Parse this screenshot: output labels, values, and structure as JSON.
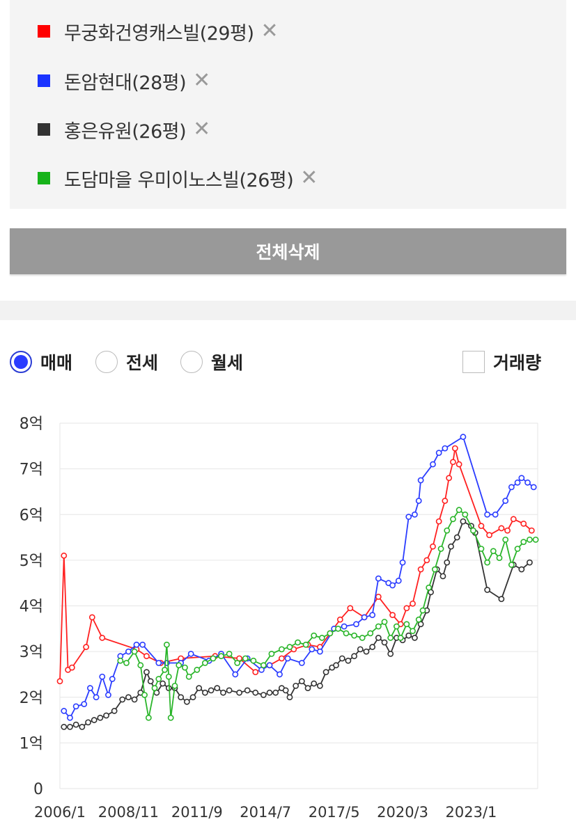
{
  "compare_list": {
    "items": [
      {
        "label": "무궁화건영캐스빌(29평)",
        "color": "#ff0000",
        "remove": "✕"
      },
      {
        "label": "돈암현대(28평)",
        "color": "#1a33ff",
        "remove": "✕"
      },
      {
        "label": "홍은유원(26평)",
        "color": "#333333",
        "remove": "✕"
      },
      {
        "label": "도담마을 우미이노스빌(26평)",
        "color": "#17b31a",
        "remove": "✕"
      }
    ],
    "delete_all_label": "전체삭제"
  },
  "chart_controls": {
    "options": [
      {
        "label": "매매",
        "checked": true
      },
      {
        "label": "전세",
        "checked": false
      },
      {
        "label": "월세",
        "checked": false
      }
    ],
    "volume_label": "거래량",
    "volume_checked": false
  },
  "chart_data": {
    "type": "line",
    "x_type": "date",
    "xlim": [
      "2006-01",
      "2025-10"
    ],
    "x_ticks": [
      "2006/1",
      "2008/11",
      "2011/9",
      "2014/7",
      "2017/5",
      "2020/3",
      "2023/1"
    ],
    "ylim": [
      0,
      8
    ],
    "y_ticks": [
      "0",
      "1억",
      "2억",
      "3억",
      "4억",
      "5억",
      "6억",
      "7억",
      "8억"
    ],
    "grid": true,
    "markers": "circle",
    "series": [
      {
        "name": "무궁화건영캐스빌(29평)",
        "color": "#ff2020",
        "points": [
          [
            "2006-01",
            2.35
          ],
          [
            "2006-03",
            5.1
          ],
          [
            "2006-05",
            2.6
          ],
          [
            "2006-07",
            2.65
          ],
          [
            "2007-02",
            3.1
          ],
          [
            "2007-05",
            3.75
          ],
          [
            "2007-10",
            3.3
          ],
          [
            "2009-03",
            3.05
          ],
          [
            "2009-08",
            2.9
          ],
          [
            "2010-03",
            2.75
          ],
          [
            "2011-01",
            2.85
          ],
          [
            "2012-06",
            2.9
          ],
          [
            "2013-06",
            2.85
          ],
          [
            "2014-02",
            2.55
          ],
          [
            "2014-09",
            2.7
          ],
          [
            "2015-03",
            2.85
          ],
          [
            "2015-09",
            3.05
          ],
          [
            "2016-04",
            3.15
          ],
          [
            "2016-10",
            3.1
          ],
          [
            "2017-03",
            3.4
          ],
          [
            "2017-08",
            3.7
          ],
          [
            "2018-01",
            3.95
          ],
          [
            "2018-08",
            3.75
          ],
          [
            "2019-03",
            4.2
          ],
          [
            "2019-10",
            3.8
          ],
          [
            "2020-02",
            3.6
          ],
          [
            "2020-05",
            3.95
          ],
          [
            "2020-08",
            4.05
          ],
          [
            "2020-12",
            4.8
          ],
          [
            "2021-03",
            5.0
          ],
          [
            "2021-06",
            5.3
          ],
          [
            "2021-09",
            5.85
          ],
          [
            "2021-12",
            6.3
          ],
          [
            "2022-02",
            6.8
          ],
          [
            "2022-04",
            7.15
          ],
          [
            "2022-05",
            7.45
          ],
          [
            "2022-07",
            7.1
          ],
          [
            "2023-06",
            5.75
          ],
          [
            "2023-10",
            5.55
          ],
          [
            "2024-04",
            5.7
          ],
          [
            "2024-07",
            5.65
          ],
          [
            "2024-10",
            5.9
          ],
          [
            "2025-03",
            5.8
          ],
          [
            "2025-07",
            5.65
          ]
        ]
      },
      {
        "name": "돈암현대(28평)",
        "color": "#2a3cff",
        "points": [
          [
            "2006-03",
            1.7
          ],
          [
            "2006-06",
            1.55
          ],
          [
            "2006-09",
            1.8
          ],
          [
            "2007-01",
            1.85
          ],
          [
            "2007-04",
            2.2
          ],
          [
            "2007-07",
            2.0
          ],
          [
            "2007-10",
            2.45
          ],
          [
            "2008-01",
            2.05
          ],
          [
            "2008-03",
            2.4
          ],
          [
            "2008-07",
            2.9
          ],
          [
            "2008-11",
            3.0
          ],
          [
            "2009-03",
            3.15
          ],
          [
            "2009-06",
            3.15
          ],
          [
            "2010-02",
            2.75
          ],
          [
            "2010-06",
            2.75
          ],
          [
            "2011-01",
            2.75
          ],
          [
            "2011-06",
            2.95
          ],
          [
            "2012-03",
            2.8
          ],
          [
            "2012-09",
            2.95
          ],
          [
            "2013-04",
            2.5
          ],
          [
            "2013-10",
            2.85
          ],
          [
            "2014-05",
            2.6
          ],
          [
            "2014-09",
            2.7
          ],
          [
            "2015-02",
            2.5
          ],
          [
            "2015-06",
            2.85
          ],
          [
            "2016-01",
            2.75
          ],
          [
            "2016-06",
            3.05
          ],
          [
            "2016-10",
            3.0
          ],
          [
            "2017-05",
            3.5
          ],
          [
            "2017-10",
            3.55
          ],
          [
            "2018-04",
            3.6
          ],
          [
            "2018-08",
            3.75
          ],
          [
            "2018-12",
            3.8
          ],
          [
            "2019-03",
            4.6
          ],
          [
            "2019-08",
            4.5
          ],
          [
            "2019-10",
            4.45
          ],
          [
            "2020-01",
            4.55
          ],
          [
            "2020-03",
            4.95
          ],
          [
            "2020-06",
            5.95
          ],
          [
            "2020-09",
            6.0
          ],
          [
            "2020-11",
            6.3
          ],
          [
            "2020-12",
            6.75
          ],
          [
            "2021-06",
            7.1
          ],
          [
            "2021-09",
            7.35
          ],
          [
            "2021-12",
            7.45
          ],
          [
            "2022-09",
            7.7
          ],
          [
            "2023-09",
            6.0
          ],
          [
            "2024-01",
            6.0
          ],
          [
            "2024-06",
            6.3
          ],
          [
            "2024-09",
            6.6
          ],
          [
            "2024-12",
            6.7
          ],
          [
            "2025-02",
            6.8
          ],
          [
            "2025-05",
            6.7
          ],
          [
            "2025-08",
            6.6
          ]
        ]
      },
      {
        "name": "홍은유원(26평)",
        "color": "#333333",
        "points": [
          [
            "2006-03",
            1.35
          ],
          [
            "2006-06",
            1.35
          ],
          [
            "2006-09",
            1.4
          ],
          [
            "2006-12",
            1.35
          ],
          [
            "2007-03",
            1.45
          ],
          [
            "2007-06",
            1.5
          ],
          [
            "2007-09",
            1.55
          ],
          [
            "2007-12",
            1.6
          ],
          [
            "2008-04",
            1.7
          ],
          [
            "2008-08",
            1.95
          ],
          [
            "2008-11",
            2.0
          ],
          [
            "2009-02",
            1.95
          ],
          [
            "2009-05",
            2.1
          ],
          [
            "2009-08",
            2.55
          ],
          [
            "2009-10",
            2.35
          ],
          [
            "2010-01",
            2.1
          ],
          [
            "2010-04",
            2.3
          ],
          [
            "2010-07",
            2.2
          ],
          [
            "2010-10",
            2.2
          ],
          [
            "2011-01",
            2.0
          ],
          [
            "2011-04",
            1.9
          ],
          [
            "2011-07",
            2.0
          ],
          [
            "2011-10",
            2.2
          ],
          [
            "2012-01",
            2.1
          ],
          [
            "2012-04",
            2.15
          ],
          [
            "2012-07",
            2.2
          ],
          [
            "2012-10",
            2.1
          ],
          [
            "2013-01",
            2.15
          ],
          [
            "2013-06",
            2.1
          ],
          [
            "2013-10",
            2.15
          ],
          [
            "2014-02",
            2.1
          ],
          [
            "2014-06",
            2.05
          ],
          [
            "2014-09",
            2.1
          ],
          [
            "2014-12",
            2.1
          ],
          [
            "2015-03",
            2.2
          ],
          [
            "2015-05",
            2.15
          ],
          [
            "2015-07",
            2.0
          ],
          [
            "2015-10",
            2.25
          ],
          [
            "2016-01",
            2.35
          ],
          [
            "2016-04",
            2.2
          ],
          [
            "2016-07",
            2.3
          ],
          [
            "2016-10",
            2.25
          ],
          [
            "2017-01",
            2.55
          ],
          [
            "2017-04",
            2.65
          ],
          [
            "2017-06",
            2.7
          ],
          [
            "2017-09",
            2.85
          ],
          [
            "2017-12",
            2.8
          ],
          [
            "2018-03",
            2.9
          ],
          [
            "2018-06",
            3.05
          ],
          [
            "2018-09",
            3.0
          ],
          [
            "2018-12",
            3.1
          ],
          [
            "2019-03",
            3.3
          ],
          [
            "2019-06",
            3.2
          ],
          [
            "2019-09",
            2.95
          ],
          [
            "2019-12",
            3.3
          ],
          [
            "2020-03",
            3.25
          ],
          [
            "2020-06",
            3.35
          ],
          [
            "2020-09",
            3.3
          ],
          [
            "2020-12",
            3.6
          ],
          [
            "2021-03",
            3.9
          ],
          [
            "2021-05",
            4.3
          ],
          [
            "2021-08",
            4.8
          ],
          [
            "2021-11",
            4.65
          ],
          [
            "2022-01",
            4.95
          ],
          [
            "2022-03",
            5.3
          ],
          [
            "2022-06",
            5.5
          ],
          [
            "2022-09",
            5.85
          ],
          [
            "2023-01",
            5.75
          ],
          [
            "2023-03",
            5.6
          ],
          [
            "2023-09",
            4.35
          ],
          [
            "2024-04",
            4.15
          ],
          [
            "2024-10",
            4.9
          ],
          [
            "2025-02",
            4.8
          ],
          [
            "2025-06",
            4.95
          ]
        ]
      },
      {
        "name": "도담마을 우미이노스빌(26평)",
        "color": "#2ab52a",
        "points": [
          [
            "2008-07",
            2.8
          ],
          [
            "2008-10",
            2.75
          ],
          [
            "2009-02",
            3.0
          ],
          [
            "2009-05",
            2.7
          ],
          [
            "2009-07",
            2.05
          ],
          [
            "2009-09",
            1.55
          ],
          [
            "2009-12",
            2.2
          ],
          [
            "2010-02",
            2.4
          ],
          [
            "2010-05",
            2.6
          ],
          [
            "2010-06",
            3.15
          ],
          [
            "2010-07",
            2.45
          ],
          [
            "2010-08",
            1.55
          ],
          [
            "2010-10",
            2.25
          ],
          [
            "2010-12",
            2.7
          ],
          [
            "2011-03",
            2.65
          ],
          [
            "2011-05",
            2.45
          ],
          [
            "2011-09",
            2.6
          ],
          [
            "2012-01",
            2.75
          ],
          [
            "2012-05",
            2.85
          ],
          [
            "2012-09",
            2.9
          ],
          [
            "2013-01",
            2.95
          ],
          [
            "2013-05",
            2.75
          ],
          [
            "2013-09",
            2.85
          ],
          [
            "2014-01",
            2.8
          ],
          [
            "2014-06",
            2.7
          ],
          [
            "2014-10",
            2.95
          ],
          [
            "2015-03",
            3.05
          ],
          [
            "2015-07",
            3.1
          ],
          [
            "2015-11",
            3.2
          ],
          [
            "2016-03",
            3.15
          ],
          [
            "2016-07",
            3.35
          ],
          [
            "2016-11",
            3.3
          ],
          [
            "2017-03",
            3.4
          ],
          [
            "2017-07",
            3.5
          ],
          [
            "2017-11",
            3.4
          ],
          [
            "2018-03",
            3.35
          ],
          [
            "2018-07",
            3.3
          ],
          [
            "2018-11",
            3.4
          ],
          [
            "2019-03",
            3.55
          ],
          [
            "2019-06",
            3.65
          ],
          [
            "2019-09",
            3.3
          ],
          [
            "2019-12",
            3.55
          ],
          [
            "2020-02",
            3.3
          ],
          [
            "2020-05",
            3.6
          ],
          [
            "2020-08",
            3.45
          ],
          [
            "2020-11",
            3.7
          ],
          [
            "2021-01",
            3.9
          ],
          [
            "2021-04",
            4.4
          ],
          [
            "2021-07",
            4.8
          ],
          [
            "2021-10",
            5.25
          ],
          [
            "2022-01",
            5.65
          ],
          [
            "2022-04",
            5.9
          ],
          [
            "2022-07",
            6.1
          ],
          [
            "2022-10",
            6.0
          ],
          [
            "2023-02",
            5.65
          ],
          [
            "2023-06",
            5.25
          ],
          [
            "2023-09",
            4.95
          ],
          [
            "2023-12",
            5.2
          ],
          [
            "2024-03",
            5.05
          ],
          [
            "2024-06",
            5.45
          ],
          [
            "2024-09",
            4.9
          ],
          [
            "2024-12",
            5.25
          ],
          [
            "2025-03",
            5.4
          ],
          [
            "2025-06",
            5.45
          ],
          [
            "2025-09",
            5.45
          ]
        ]
      }
    ]
  }
}
